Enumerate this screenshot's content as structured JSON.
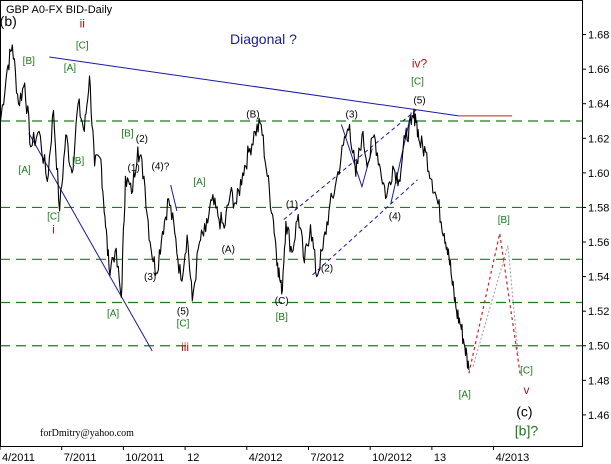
{
  "chart_data": {
    "type": "line",
    "title": "GBP A0-FX BID-Daily",
    "subtitle": "Diagonal ?",
    "footer": "forDmitry@yahoo.com",
    "ylim": [
      1.442,
      1.7
    ],
    "y_ticks": [
      "1.46",
      "1.48",
      "1.50",
      "1.52",
      "1.54",
      "1.56",
      "1.58",
      "1.60",
      "1.62",
      "1.64",
      "1.66",
      "1.68"
    ],
    "x_ticks": [
      "4/2011",
      "7/2011",
      "10/2011",
      "12",
      "4/2012",
      "7/2012",
      "10/2012",
      "13",
      "4/2013"
    ],
    "x_tick_values": [
      0,
      3,
      6,
      9,
      12,
      15,
      18,
      21,
      24
    ],
    "xlim": [
      0,
      28.3
    ],
    "colors": {
      "price": "#000000",
      "grid": "#1f7a1f",
      "channel": "#1a1aa0",
      "resistance": "#cc2222",
      "projection": "#cc2222",
      "projection_alt": "#9a9a9a",
      "axis_bg": "#ffffff"
    },
    "horizontal_levels": [
      1.63,
      1.58,
      1.55,
      1.525,
      1.5
    ],
    "series": [
      {
        "values": [
          [
            0.0,
            1.628
          ],
          [
            0.35,
            1.66
          ],
          [
            0.6,
            1.674
          ],
          [
            0.9,
            1.64
          ],
          [
            1.2,
            1.652
          ],
          [
            1.5,
            1.615
          ],
          [
            1.9,
            1.624
          ],
          [
            2.3,
            1.595
          ],
          [
            2.6,
            1.636
          ],
          [
            2.9,
            1.578
          ],
          [
            3.2,
            1.622
          ],
          [
            3.5,
            1.6
          ],
          [
            3.8,
            1.64
          ],
          [
            4.1,
            1.624
          ],
          [
            4.35,
            1.656
          ],
          [
            4.6,
            1.604
          ],
          [
            4.9,
            1.608
          ],
          [
            5.1,
            1.575
          ],
          [
            5.3,
            1.545
          ],
          [
            5.6,
            1.555
          ],
          [
            5.9,
            1.528
          ],
          [
            6.1,
            1.598
          ],
          [
            6.4,
            1.588
          ],
          [
            6.7,
            1.615
          ],
          [
            7.0,
            1.598
          ],
          [
            7.3,
            1.56
          ],
          [
            7.6,
            1.542
          ],
          [
            7.9,
            1.566
          ],
          [
            8.2,
            1.585
          ],
          [
            8.5,
            1.565
          ],
          [
            8.8,
            1.538
          ],
          [
            9.1,
            1.564
          ],
          [
            9.35,
            1.526
          ],
          [
            9.7,
            1.56
          ],
          [
            10.0,
            1.566
          ],
          [
            10.3,
            1.584
          ],
          [
            10.6,
            1.575
          ],
          [
            10.9,
            1.568
          ],
          [
            11.2,
            1.588
          ],
          [
            11.5,
            1.582
          ],
          [
            11.8,
            1.6
          ],
          [
            12.1,
            1.612
          ],
          [
            12.4,
            1.624
          ],
          [
            12.7,
            1.628
          ],
          [
            13.0,
            1.598
          ],
          [
            13.3,
            1.572
          ],
          [
            13.5,
            1.548
          ],
          [
            13.7,
            1.53
          ],
          [
            13.9,
            1.572
          ],
          [
            14.2,
            1.554
          ],
          [
            14.5,
            1.576
          ],
          [
            14.8,
            1.548
          ],
          [
            15.1,
            1.57
          ],
          [
            15.4,
            1.54
          ],
          [
            15.7,
            1.556
          ],
          [
            16.0,
            1.578
          ],
          [
            16.3,
            1.592
          ],
          [
            16.7,
            1.616
          ],
          [
            17.0,
            1.628
          ],
          [
            17.3,
            1.598
          ],
          [
            17.6,
            1.622
          ],
          [
            17.9,
            1.606
          ],
          [
            18.2,
            1.622
          ],
          [
            18.5,
            1.602
          ],
          [
            18.8,
            1.586
          ],
          [
            19.1,
            1.604
          ],
          [
            19.4,
            1.596
          ],
          [
            19.7,
            1.62
          ],
          [
            20.0,
            1.628
          ],
          [
            20.2,
            1.634
          ],
          [
            20.4,
            1.618
          ],
          [
            20.7,
            1.612
          ],
          [
            21.0,
            1.596
          ],
          [
            21.3,
            1.582
          ],
          [
            21.6,
            1.565
          ],
          [
            21.8,
            1.556
          ],
          [
            22.0,
            1.535
          ],
          [
            22.2,
            1.52
          ],
          [
            22.4,
            1.512
          ],
          [
            22.6,
            1.5
          ],
          [
            22.8,
            1.486
          ]
        ]
      }
    ],
    "wave_labels": [
      {
        "text": "(b)",
        "x": 0.4,
        "y": 1.685,
        "style": "big-black"
      },
      {
        "text": "[B]",
        "x": 1.4,
        "y": 1.663,
        "style": "green"
      },
      {
        "text": "ii",
        "x": 4.0,
        "y": 1.684,
        "style": "red"
      },
      {
        "text": "[C]",
        "x": 4.0,
        "y": 1.672,
        "style": "green"
      },
      {
        "text": "[A]",
        "x": 3.4,
        "y": 1.659,
        "style": "green"
      },
      {
        "text": "[B]",
        "x": 6.2,
        "y": 1.621,
        "style": "green"
      },
      {
        "text": "(2)",
        "x": 6.9,
        "y": 1.618,
        "style": "black"
      },
      {
        "text": "[B]",
        "x": 3.8,
        "y": 1.605,
        "style": "green"
      },
      {
        "text": "[A]",
        "x": 1.2,
        "y": 1.6,
        "style": "green"
      },
      {
        "text": "(1)",
        "x": 6.5,
        "y": 1.601,
        "style": "black"
      },
      {
        "text": "(4)?",
        "x": 7.8,
        "y": 1.602,
        "style": "black"
      },
      {
        "text": "[C]",
        "x": 2.6,
        "y": 1.573,
        "style": "green"
      },
      {
        "text": "i",
        "x": 2.6,
        "y": 1.565,
        "style": "red"
      },
      {
        "text": "(3)",
        "x": 7.3,
        "y": 1.538,
        "style": "black"
      },
      {
        "text": "[A]",
        "x": 5.5,
        "y": 1.517,
        "style": "green"
      },
      {
        "text": "(5)",
        "x": 8.9,
        "y": 1.518,
        "style": "black"
      },
      {
        "text": "[C]",
        "x": 8.9,
        "y": 1.511,
        "style": "green"
      },
      {
        "text": "iii",
        "x": 9.0,
        "y": 1.497,
        "style": "red"
      },
      {
        "text": "[A]",
        "x": 9.7,
        "y": 1.593,
        "style": "green"
      },
      {
        "text": "(A)",
        "x": 11.1,
        "y": 1.554,
        "style": "black"
      },
      {
        "text": "(B)",
        "x": 12.3,
        "y": 1.632,
        "style": "black"
      },
      {
        "text": "(C)",
        "x": 13.7,
        "y": 1.524,
        "style": "black"
      },
      {
        "text": "[B]",
        "x": 13.7,
        "y": 1.515,
        "style": "green"
      },
      {
        "text": "(1)",
        "x": 14.2,
        "y": 1.58,
        "style": "black"
      },
      {
        "text": "(2)",
        "x": 15.9,
        "y": 1.543,
        "style": "black"
      },
      {
        "text": "(3)",
        "x": 17.1,
        "y": 1.632,
        "style": "black"
      },
      {
        "text": "(4)",
        "x": 19.2,
        "y": 1.573,
        "style": "black"
      },
      {
        "text": "(5)",
        "x": 20.4,
        "y": 1.64,
        "style": "black"
      },
      {
        "text": "iv?",
        "x": 20.4,
        "y": 1.661,
        "style": "red"
      },
      {
        "text": "[C]",
        "x": 20.3,
        "y": 1.651,
        "style": "green"
      },
      {
        "text": "[A]",
        "x": 22.6,
        "y": 1.47,
        "style": "green"
      },
      {
        "text": "[B]",
        "x": 24.5,
        "y": 1.571,
        "style": "green"
      },
      {
        "text": "[C]",
        "x": 25.6,
        "y": 1.484,
        "style": "green"
      },
      {
        "text": "v",
        "x": 25.6,
        "y": 1.472,
        "style": "red"
      },
      {
        "text": "(c)",
        "x": 25.5,
        "y": 1.459,
        "style": "big-black"
      },
      {
        "text": "[b]?",
        "x": 25.6,
        "y": 1.448,
        "style": "big-green"
      }
    ],
    "trendlines": [
      {
        "name": "upper-wedge",
        "color": "#1a1aa0",
        "points": [
          [
            2.4,
            1.667
          ],
          [
            22.3,
            1.633
          ]
        ]
      },
      {
        "name": "lower-wedge",
        "color": "#1a1aa0",
        "points": [
          [
            1.4,
            1.623
          ],
          [
            7.4,
            1.497
          ]
        ]
      },
      {
        "name": "resistance",
        "color": "#cc2222",
        "points": [
          [
            22.3,
            1.633
          ],
          [
            24.9,
            1.633
          ]
        ]
      }
    ],
    "channels": [
      {
        "points": [
          [
            13.8,
            1.573
          ],
          [
            20.3,
            1.637
          ]
        ]
      },
      {
        "points": [
          [
            15.2,
            1.541
          ],
          [
            20.3,
            1.596
          ]
        ]
      }
    ],
    "wave_paths": [
      [
        [
          16.6,
          1.628
        ],
        [
          17.6,
          1.592
        ],
        [
          18.1,
          1.614
        ]
      ],
      [
        [
          19.0,
          1.582
        ],
        [
          20.0,
          1.635
        ]
      ],
      [
        [
          8.3,
          1.593
        ],
        [
          8.6,
          1.578
        ]
      ]
    ],
    "projection": [
      [
        22.8,
        1.484
      ],
      [
        24.3,
        1.565
      ],
      [
        25.3,
        1.483
      ]
    ],
    "projection_alt": [
      [
        23.0,
        1.488
      ],
      [
        24.7,
        1.558
      ],
      [
        25.2,
        1.494
      ]
    ]
  }
}
